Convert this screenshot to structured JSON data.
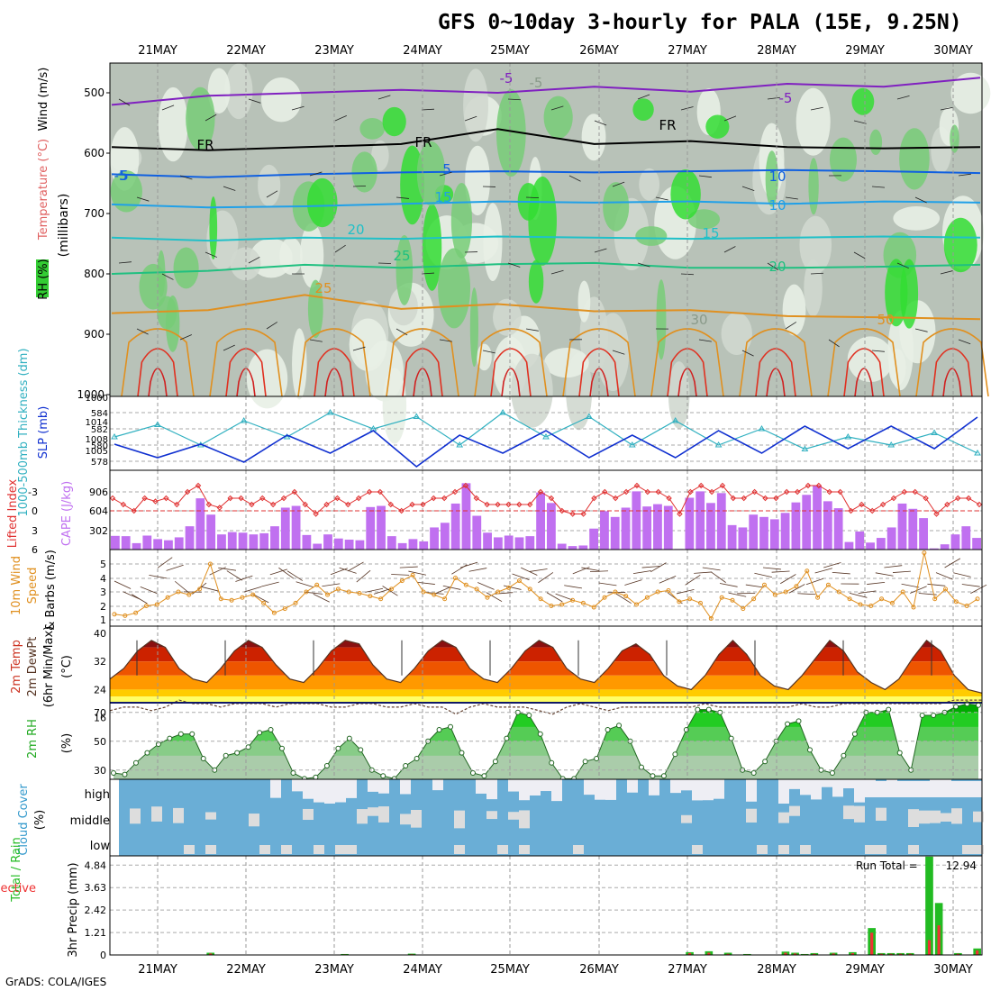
{
  "title": "GFS 0~10day 3-hourly for PALA (15E, 9.25N)",
  "footer": "GrADS: COLA/IGES",
  "chart_data": [
    {
      "panel": "upper-air",
      "type": "heatmap",
      "xlabels": [
        "21MAY",
        "22MAY",
        "23MAY",
        "24MAY",
        "25MAY",
        "26MAY",
        "27MAY",
        "28MAY",
        "29MAY",
        "30MAY"
      ],
      "ylabel_parts": [
        "RH (%)",
        "Temperature (°C)",
        "Wind (m/s)"
      ],
      "ylabel_unit": "(millibars)",
      "yticks": [
        "500",
        "600",
        "700",
        "800",
        "900",
        "1000"
      ],
      "contour_labels": [
        "-5",
        "-5",
        "FR",
        "FR",
        "FR",
        "-5",
        "5",
        "10",
        "15",
        "20",
        "25",
        "25",
        "50",
        "-5",
        "5",
        "10",
        "15",
        "20",
        "30"
      ],
      "contours": [
        {
          "label": "-5",
          "color": "#8020c0",
          "values": [
            520,
            505,
            500,
            495,
            500,
            490,
            498,
            485,
            490,
            475
          ]
        },
        {
          "label": "FR",
          "color": "#000000",
          "values": [
            590,
            595,
            590,
            585,
            560,
            585,
            580,
            590,
            592,
            590
          ]
        },
        {
          "label": "5",
          "color": "#1060e0",
          "values": [
            635,
            640,
            635,
            632,
            630,
            632,
            630,
            628,
            630,
            633
          ]
        },
        {
          "label": "10",
          "color": "#20a0e8",
          "values": [
            685,
            690,
            688,
            684,
            680,
            682,
            680,
            684,
            680,
            682
          ]
        },
        {
          "label": "15",
          "color": "#20c0c8",
          "values": [
            740,
            745,
            740,
            742,
            738,
            740,
            742,
            740,
            738,
            740
          ]
        },
        {
          "label": "20",
          "color": "#20c080",
          "values": [
            800,
            795,
            785,
            790,
            784,
            782,
            790,
            790,
            788,
            785
          ]
        },
        {
          "label": "25",
          "color": "#e09020",
          "values": [
            865,
            860,
            835,
            858,
            850,
            862,
            860,
            870,
            872,
            875
          ]
        }
      ]
    },
    {
      "panel": "thickness-slp",
      "type": "line",
      "ylabel_left": "1000-500mb Thickness (dm)",
      "ylabel_right": "SLP (mb)",
      "yticks_left": [
        "584",
        "582",
        "580",
        "578"
      ],
      "yticks_right": [
        "1014",
        "1008",
        "1005",
        "1000"
      ],
      "series": [
        {
          "name": "Thickness",
          "color": "#30b0c0",
          "values": [
            581,
            582.5,
            580,
            583,
            581,
            584,
            582,
            583.5,
            580,
            584,
            581,
            583.5,
            580,
            583,
            580,
            582,
            579.5,
            581,
            580,
            581.5,
            579
          ]
        },
        {
          "name": "SLP",
          "color": "#1030d0",
          "values": [
            1009,
            1006,
            1009,
            1005,
            1011,
            1007,
            1012,
            1004,
            1011,
            1007,
            1012,
            1006,
            1011,
            1006,
            1012,
            1007,
            1013,
            1008,
            1013,
            1008,
            1015
          ]
        }
      ]
    },
    {
      "panel": "cape-li",
      "type": "bar",
      "ylabel_left": "Lifted Index",
      "ylabel_right": "CAPE (J/kg)",
      "yticks_left": [
        "-3",
        "0",
        "3",
        "6"
      ],
      "yticks_right": [
        "906",
        "604",
        "302"
      ],
      "cape": [
        235,
        230,
        110,
        240,
        180,
        160,
        210,
        400,
        880,
        600,
        260,
        300,
        290,
        260,
        280,
        400,
        720,
        750,
        250,
        100,
        260,
        190,
        170,
        160,
        730,
        750,
        230,
        110,
        180,
        140,
        380,
        460,
        790,
        1140,
        580,
        290,
        210,
        240,
        210,
        230,
        980,
        800,
        100,
        60,
        70,
        360,
        660,
        560,
        720,
        1000,
        740,
        780,
        750,
        10,
        890,
        1000,
        800,
        970,
        420,
        380,
        600,
        560,
        520,
        630,
        810,
        940,
        1100,
        830,
        710,
        130,
        310,
        120,
        200,
        380,
        790,
        700,
        540,
        20,
        90,
        260,
        400,
        200
      ],
      "lifted_index": [
        -2,
        -1,
        0,
        -2,
        -1.5,
        -2,
        -1,
        -3,
        -4,
        -1,
        -0.5,
        -2,
        -2,
        -1,
        -2,
        -1,
        -2,
        -3,
        -1,
        0.5,
        -1,
        -2,
        -1,
        -2,
        -3,
        -3,
        -1,
        0,
        -1,
        -1,
        -2,
        -2,
        -3,
        -4,
        -2,
        -1,
        -1,
        -1,
        -1,
        -1,
        -3,
        -2,
        0,
        0.5,
        0.5,
        -2,
        -3,
        -2,
        -3,
        -4,
        -3,
        -3,
        -2,
        0.5,
        -3,
        -4,
        -3,
        -4,
        -2,
        -2,
        -3,
        -2,
        -2,
        -3,
        -3,
        -4,
        -4,
        -3,
        -3,
        0,
        -1,
        0,
        -1,
        -2,
        -3,
        -3,
        -2,
        0.5,
        -1,
        -2,
        -2,
        -1
      ]
    },
    {
      "panel": "wind10m",
      "type": "line",
      "ylabel": "10m Wind Speed & Barbs (m/s)",
      "yticks": [
        "5",
        "4",
        "3",
        "2",
        "1"
      ],
      "values": [
        1.4,
        1.3,
        1.5,
        2.0,
        2.1,
        2.6,
        3.0,
        2.8,
        3.2,
        5.0,
        2.5,
        2.4,
        2.6,
        2.8,
        2.2,
        1.5,
        1.8,
        2.2,
        3.0,
        3.5,
        2.8,
        3.2,
        3.0,
        2.9,
        2.7,
        2.5,
        3.2,
        3.8,
        4.2,
        3.0,
        2.8,
        2.5,
        4.0,
        3.5,
        3.2,
        2.6,
        3.0,
        3.3,
        3.8,
        3.2,
        2.5,
        2.0,
        2.1,
        2.4,
        2.2,
        1.9,
        2.6,
        3.0,
        2.7,
        2.1,
        2.6,
        3.0,
        3.1,
        2.3,
        2.5,
        2.2,
        1.1,
        2.6,
        2.4,
        1.8,
        2.5,
        3.5,
        2.8,
        3.0,
        3.4,
        4.5,
        2.6,
        3.5,
        3.0,
        2.5,
        2.1,
        2.0,
        2.5,
        2.2,
        3.0,
        1.9,
        5.8,
        2.5,
        3.2,
        2.3,
        2.0,
        2.5
      ]
    },
    {
      "panel": "temp2m",
      "type": "area",
      "ylabel": "2m Temp 2m DewPt (6hr Min/Max) (°C)",
      "yticks": [
        "40",
        "32",
        "24",
        "16"
      ],
      "temp": [
        27,
        30,
        35,
        38,
        36,
        30,
        27,
        26,
        30,
        35,
        38,
        36,
        31,
        27,
        26,
        30,
        35,
        38,
        37,
        31,
        27,
        26,
        30,
        35,
        38,
        36,
        30,
        27,
        26,
        30,
        35,
        38,
        36,
        30,
        27,
        26,
        30,
        35,
        37,
        34,
        28,
        25,
        24,
        28,
        34,
        38,
        34,
        28,
        25,
        24,
        28,
        33,
        38,
        35,
        29,
        26,
        24,
        27,
        33,
        38,
        35,
        28,
        24,
        23
      ],
      "dewpt": [
        18,
        19,
        19,
        18,
        19,
        21,
        20,
        20,
        19,
        20,
        20,
        20,
        19,
        20,
        20,
        20,
        19,
        19,
        20,
        20,
        19,
        19,
        20,
        19,
        19,
        17,
        19,
        20,
        19,
        19,
        19,
        18,
        17,
        19,
        20,
        19,
        18,
        19,
        19,
        19,
        19,
        19,
        19,
        20,
        19,
        19,
        19,
        19,
        19,
        19,
        20,
        19,
        19,
        20,
        20,
        20,
        20,
        20,
        20,
        20,
        20,
        21,
        21,
        21
      ]
    },
    {
      "panel": "rh2m",
      "type": "area",
      "ylabel": "2m RH (%)",
      "yticks": [
        "70",
        "50",
        "30"
      ],
      "values": [
        28,
        27,
        35,
        42,
        48,
        52,
        55,
        55,
        38,
        30,
        40,
        42,
        46,
        56,
        58,
        45,
        28,
        24,
        25,
        33,
        45,
        52,
        44,
        30,
        26,
        24,
        33,
        38,
        50,
        58,
        60,
        42,
        28,
        26,
        36,
        52,
        70,
        68,
        55,
        35,
        24,
        24,
        36,
        38,
        58,
        61,
        50,
        32,
        26,
        26,
        41,
        58,
        72,
        72,
        70,
        52,
        30,
        28,
        36,
        50,
        62,
        64,
        44,
        30,
        28,
        40,
        55,
        70,
        70,
        72,
        42,
        30,
        68,
        68,
        70,
        74,
        76,
        75
      ]
    },
    {
      "panel": "cloud",
      "type": "bar",
      "ylabel": "Cloud Cover (%)",
      "levels": [
        "high",
        "middle",
        "low"
      ]
    },
    {
      "panel": "precip",
      "type": "bar",
      "ylabel_left": "Total / Rain",
      "ylabel_left2": "Convective",
      "ylabel": "3hr Precip (mm)",
      "yticks": [
        "4.84",
        "3.63",
        "2.42",
        "1.21",
        "0"
      ],
      "run_total_label": "Run Total =",
      "run_total": "12.94",
      "total": [
        0,
        0,
        0,
        0,
        0,
        0,
        0,
        0,
        0,
        0,
        0.12,
        0,
        0,
        0,
        0,
        0,
        0,
        0,
        0,
        0,
        0,
        0,
        0,
        0,
        0.05,
        0,
        0,
        0,
        0,
        0,
        0,
        0.07,
        0,
        0,
        0,
        0,
        0,
        0,
        0,
        0,
        0,
        0,
        0,
        0,
        0,
        0,
        0,
        0,
        0,
        0,
        0,
        0,
        0,
        0,
        0,
        0,
        0,
        0,
        0,
        0,
        0.15,
        0,
        0.2,
        0,
        0.12,
        0,
        0.05,
        0,
        0,
        0,
        0.18,
        0.12,
        0.05,
        0.1,
        0,
        0.12,
        0,
        0.15,
        0,
        1.45,
        0.1,
        0.1,
        0.1,
        0.1,
        0,
        5.3,
        2.8,
        0,
        0.1,
        0,
        0.35
      ],
      "convective": [
        0,
        0,
        0,
        0,
        0,
        0,
        0,
        0,
        0,
        0,
        0.08,
        0,
        0,
        0,
        0,
        0,
        0,
        0,
        0,
        0,
        0,
        0,
        0,
        0,
        0.03,
        0,
        0,
        0,
        0,
        0,
        0,
        0.04,
        0,
        0,
        0,
        0,
        0,
        0,
        0,
        0,
        0,
        0,
        0,
        0,
        0,
        0,
        0,
        0,
        0,
        0,
        0,
        0,
        0,
        0,
        0,
        0,
        0,
        0,
        0,
        0,
        0.1,
        0,
        0.12,
        0,
        0.06,
        0,
        0.03,
        0,
        0,
        0,
        0.12,
        0.08,
        0.03,
        0.06,
        0,
        0.08,
        0,
        0.1,
        0,
        1.2,
        0.06,
        0.06,
        0.06,
        0.06,
        0,
        0.8,
        1.6,
        0,
        0.06,
        0,
        0.25
      ]
    }
  ]
}
